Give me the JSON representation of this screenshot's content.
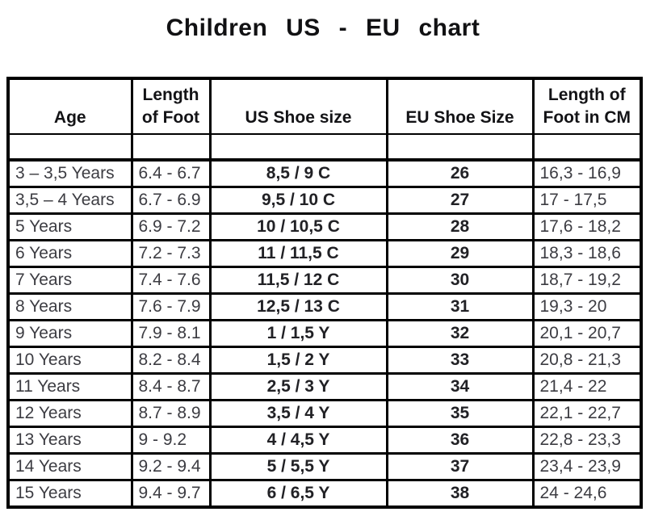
{
  "title": "Children US - EU chart",
  "chart_data": {
    "type": "table",
    "title": "Children US - EU chart",
    "columns": [
      "Age",
      "Length\nof Foot",
      "US Shoe size",
      "EU Shoe Size",
      "Length of\nFoot in CM"
    ],
    "column_ids": [
      "age",
      "length-of-foot",
      "us-shoe-size",
      "eu-shoe-size",
      "length-of-foot-cm"
    ],
    "rows": [
      [
        "3 – 3,5 Years",
        "6.4 - 6.7",
        "8,5 / 9 C",
        "26",
        "16,3 - 16,9"
      ],
      [
        "3,5 – 4 Years",
        "6.7 - 6.9",
        "9,5 / 10 C",
        "27",
        "17 - 17,5"
      ],
      [
        "5 Years",
        "6.9 - 7.2",
        "10 / 10,5 C",
        "28",
        "17,6 - 18,2"
      ],
      [
        "6 Years",
        "7.2 - 7.3",
        "11 / 11,5 C",
        "29",
        "18,3 - 18,6"
      ],
      [
        "7 Years",
        "7.4 - 7.6",
        "11,5 / 12 C",
        "30",
        "18,7 - 19,2"
      ],
      [
        "8 Years",
        "7.6 - 7.9",
        "12,5 / 13 C",
        "31",
        "19,3 - 20"
      ],
      [
        "9 Years",
        "7.9 - 8.1",
        "1 / 1,5 Y",
        "32",
        "20,1 - 20,7"
      ],
      [
        "10 Years",
        "8.2 - 8.4",
        "1,5 / 2 Y",
        "33",
        "20,8 - 21,3"
      ],
      [
        "11 Years",
        "8.4 - 8.7",
        "2,5 / 3 Y",
        "34",
        "21,4 - 22"
      ],
      [
        "12 Years",
        "8.7 - 8.9",
        "3,5 / 4 Y",
        "35",
        "22,1 - 22,7"
      ],
      [
        "13 Years",
        "9 - 9.2",
        "4 / 4,5 Y",
        "36",
        "22,8 - 23,3"
      ],
      [
        "14 Years",
        "9.2 - 9.4",
        "5 / 5,5 Y",
        "37",
        "23,4 - 23,9"
      ],
      [
        "15 Years",
        "9.4 - 9.7",
        "6 / 6,5 Y",
        "38",
        "24 - 24,6"
      ]
    ]
  }
}
